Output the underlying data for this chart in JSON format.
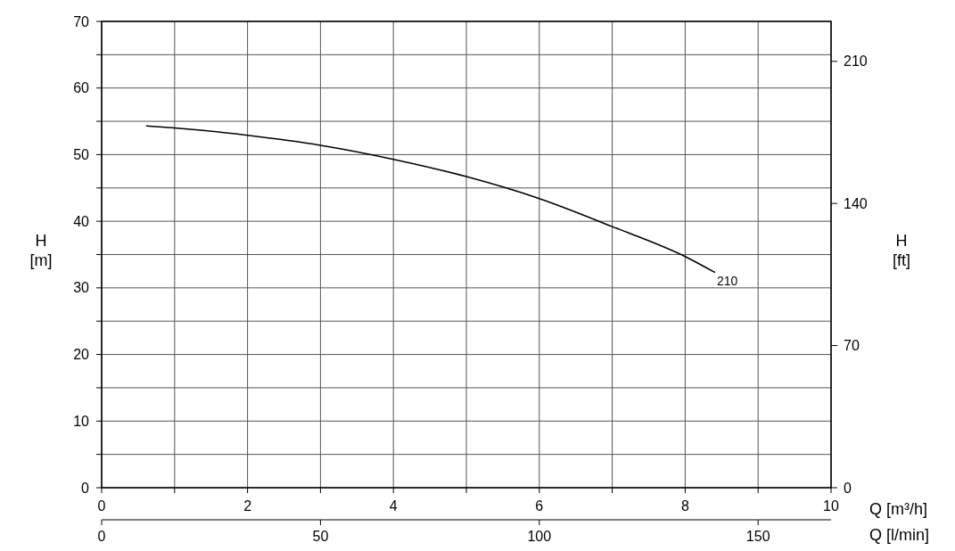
{
  "chart_data": {
    "type": "line",
    "xlabel": "Q [m³/h]",
    "x2label": "Q [l/min]",
    "ylabel": "H [m]",
    "y2label": "H [ft]",
    "xlim": [
      0,
      10
    ],
    "xticks": [
      0,
      {
        "value": 1,
        "label": null
      },
      2,
      {
        "value": 3,
        "label": null
      },
      4,
      {
        "value": 5,
        "label": null
      },
      6,
      {
        "value": 7,
        "label": null
      },
      8,
      {
        "value": 9,
        "label": null
      },
      10
    ],
    "x2lim": [
      0,
      166.67
    ],
    "x2ticks": [
      0,
      50,
      100,
      150
    ],
    "ylim": [
      0,
      70
    ],
    "yticks": [
      0,
      {
        "value": 5,
        "label": null
      },
      10,
      {
        "value": 15,
        "label": null
      },
      20,
      {
        "value": 25,
        "label": null
      },
      30,
      {
        "value": 35,
        "label": null
      },
      40,
      {
        "value": 45,
        "label": null
      },
      50,
      {
        "value": 55,
        "label": null
      },
      60,
      {
        "value": 65,
        "label": null
      },
      70
    ],
    "y2lim": [
      0,
      229.66
    ],
    "y2ticks": [
      0,
      70,
      140,
      210
    ],
    "grid": true,
    "marker": "none",
    "line_style": "solid",
    "series": [
      {
        "name": "210",
        "color": "#000000",
        "x": [
          0.61,
          1,
          2,
          3,
          4,
          5,
          6,
          7,
          8,
          8.41
        ],
        "values": [
          54.3,
          54.0,
          52.9,
          51.4,
          49.3,
          46.7,
          43.4,
          39.2,
          34.7,
          32.3
        ]
      }
    ]
  }
}
